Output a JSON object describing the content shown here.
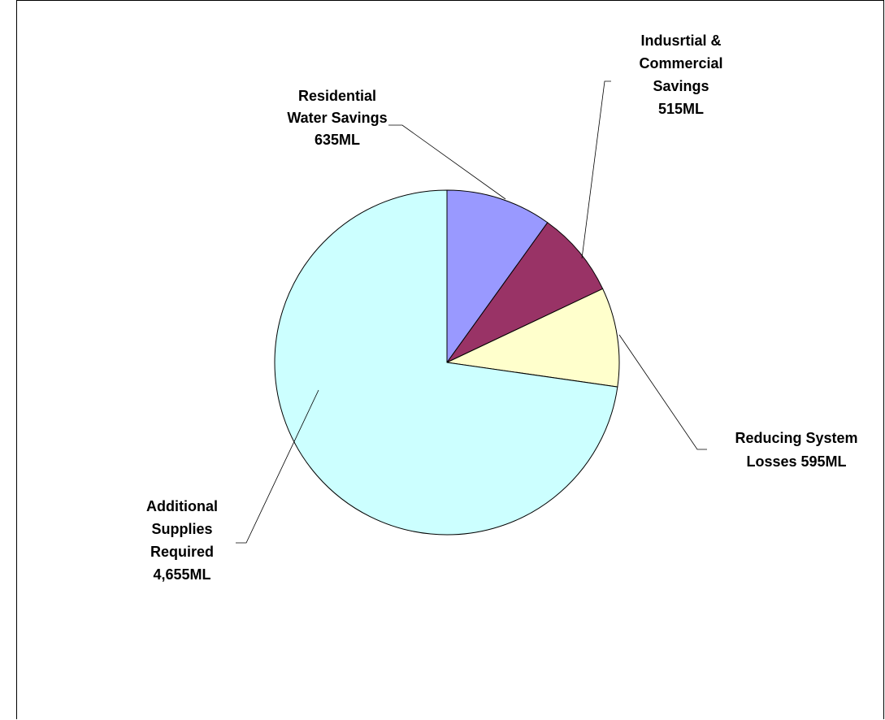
{
  "chart_data": {
    "type": "pie",
    "title": "",
    "unit": "ML",
    "start_angle_deg": 0,
    "direction": "clockwise",
    "legend": "none",
    "slices": [
      {
        "name": "Residential Water Savings",
        "value": 635,
        "color": "#9999ff",
        "label_lines": [
          "Residential",
          "Water Savings",
          "635ML"
        ]
      },
      {
        "name": "Indusrtial & Commercial Savings",
        "value": 515,
        "color": "#993366",
        "label_lines": [
          "Indusrtial &",
          "Commercial",
          "Savings",
          "515ML"
        ]
      },
      {
        "name": "Reducing System Losses",
        "value": 595,
        "color": "#ffffcc",
        "label_lines": [
          "Reducing System",
          "Losses 595ML"
        ]
      },
      {
        "name": "Additional Supplies Required",
        "value": 4655,
        "color": "#ccffff",
        "label_lines": [
          "Additional",
          "Supplies",
          "Required",
          "4,655ML"
        ]
      }
    ]
  }
}
